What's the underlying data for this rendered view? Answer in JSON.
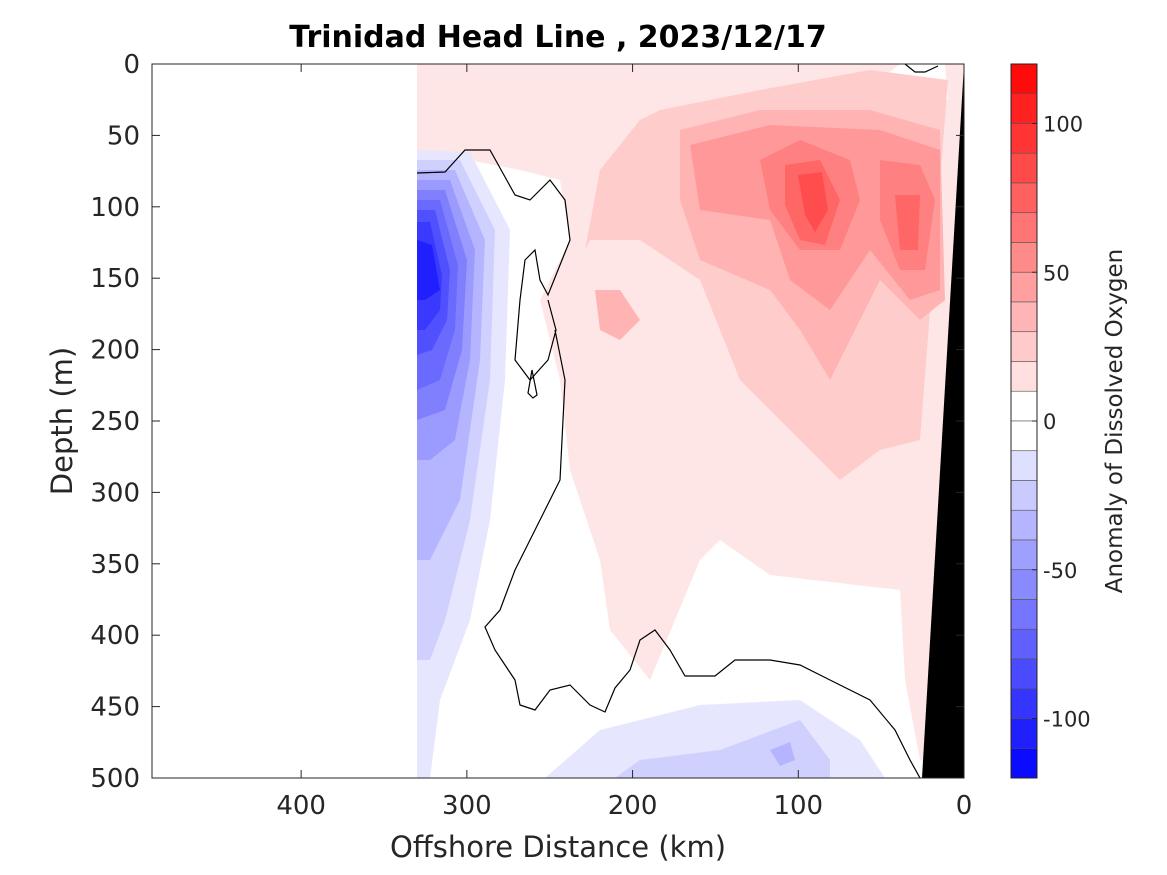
{
  "chart_data": {
    "type": "heatmap",
    "title": "Trinidad Head Line , 2023/12/17",
    "xlabel": "Offshore Distance (km)",
    "ylabel": "Depth (m)",
    "xlim": [
      490,
      0
    ],
    "ylim": [
      0,
      500
    ],
    "x_reversed": true,
    "y_reversed": true,
    "x_ticks": [
      "400",
      "300",
      "200",
      "100",
      "0"
    ],
    "x_tick_values": [
      400,
      300,
      200,
      100,
      0
    ],
    "y_ticks": [
      "0",
      "50",
      "100",
      "150",
      "200",
      "250",
      "300",
      "350",
      "400",
      "450",
      "500"
    ],
    "y_tick_values": [
      0,
      50,
      100,
      150,
      200,
      250,
      300,
      350,
      400,
      450,
      500
    ],
    "colorbar": {
      "label": "Anomaly of Dissolved Oxygen",
      "range": [
        -120,
        120
      ],
      "step": 10,
      "ticks": [
        "100",
        "50",
        "0",
        "-50",
        "-100"
      ],
      "tick_values": [
        100,
        50,
        0,
        -50,
        -100
      ],
      "color_negative": "#0000ff",
      "color_zero": "#ffffff",
      "color_positive": "#ff0000"
    },
    "data_extent_km": [
      331,
      0
    ],
    "bathymetry_color": "#000000",
    "zero_contour_color": "#000000",
    "features": [
      {
        "type": "low",
        "center_km": 322,
        "center_depth_m": 150,
        "min_value": -100
      },
      {
        "type": "high",
        "center_km": 95,
        "center_depth_m": 90,
        "max_value": 70
      },
      {
        "type": "high",
        "center_km": 40,
        "center_depth_m": 110,
        "max_value": 60
      },
      {
        "type": "low",
        "center_km": 110,
        "center_depth_m": 480,
        "min_value": -30
      }
    ]
  }
}
